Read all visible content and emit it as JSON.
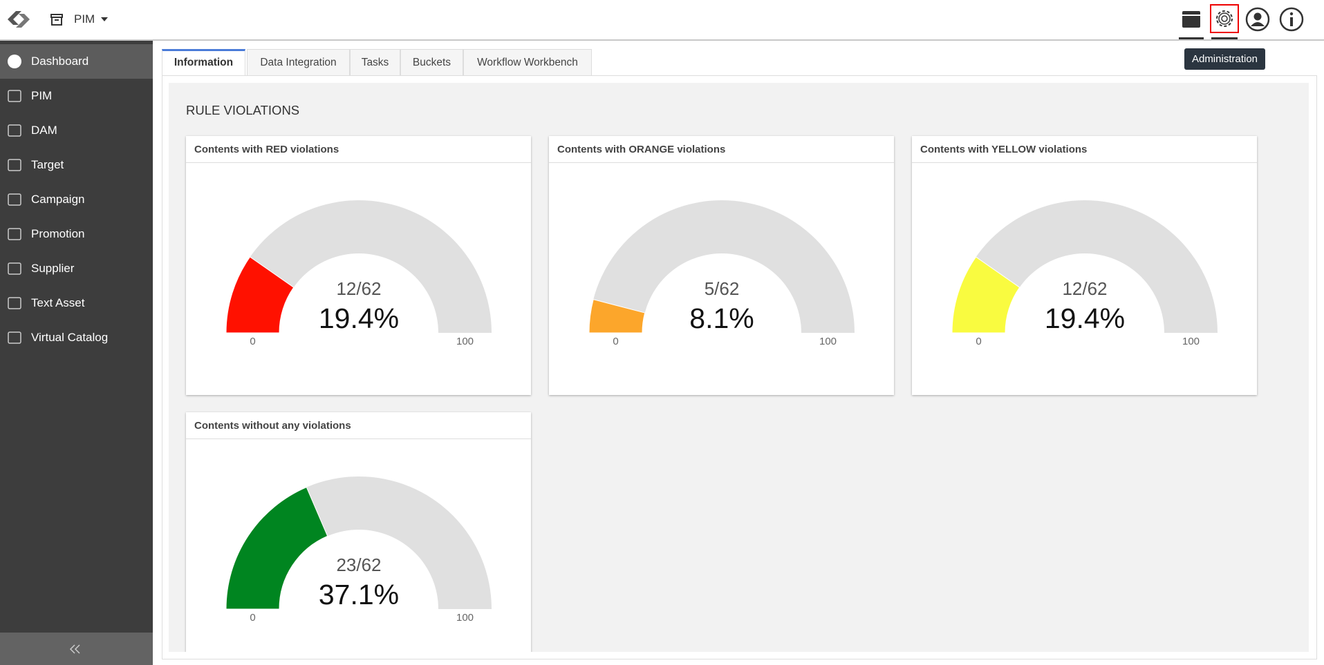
{
  "header": {
    "app": "PIM",
    "tooltip": "Administration"
  },
  "sidebar": {
    "items": [
      "Dashboard",
      "PIM",
      "DAM",
      "Target",
      "Campaign",
      "Promotion",
      "Supplier",
      "Text Asset",
      "Virtual Catalog"
    ]
  },
  "tabs": [
    "Information",
    "Data Integration",
    "Tasks",
    "Buckets",
    "Workflow Workbench"
  ],
  "section_title": "RULE VIOLATIONS",
  "chart_data": [
    {
      "type": "gauge",
      "title": "Contents with RED violations",
      "color": "#ff1100",
      "count_label": "12/62",
      "values": [
        19.4
      ],
      "value_labels": [
        "19.4%"
      ],
      "ylim": [
        0,
        100
      ],
      "yticks": [
        0,
        100
      ]
    },
    {
      "type": "gauge",
      "title": "Contents with ORANGE violations",
      "color": "#fca62b",
      "count_label": "5/62",
      "values": [
        8.1
      ],
      "value_labels": [
        "8.1%"
      ],
      "ylim": [
        0,
        100
      ],
      "yticks": [
        0,
        100
      ]
    },
    {
      "type": "gauge",
      "title": "Contents with YELLOW violations",
      "color": "#f9fb40",
      "count_label": "12/62",
      "values": [
        19.4
      ],
      "value_labels": [
        "19.4%"
      ],
      "ylim": [
        0,
        100
      ],
      "yticks": [
        0,
        100
      ]
    },
    {
      "type": "gauge",
      "title": "Contents without any violations",
      "color": "#008520",
      "count_label": "23/62",
      "values": [
        37.1
      ],
      "value_labels": [
        "37.1%"
      ],
      "ylim": [
        0,
        100
      ],
      "yticks": [
        0,
        100
      ]
    }
  ]
}
